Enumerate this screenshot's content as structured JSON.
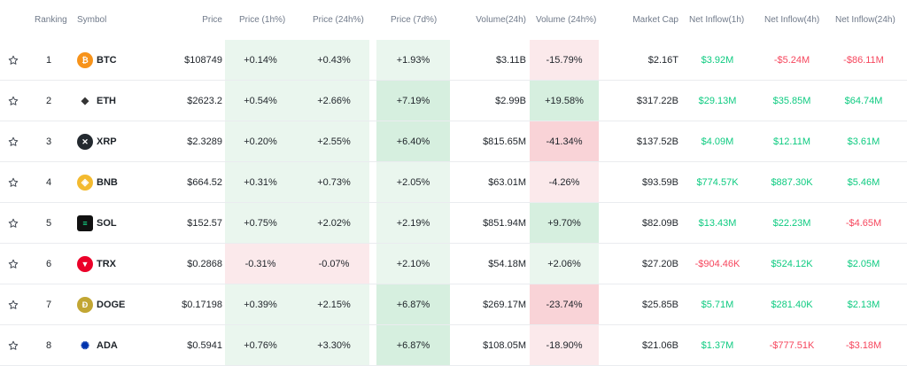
{
  "headers": {
    "ranking": "Ranking",
    "symbol": "Symbol",
    "price": "Price",
    "price_1h": "Price (1h%)",
    "price_24h": "Price (24h%)",
    "price_7d": "Price (7d%)",
    "volume_24h": "Volume(24h)",
    "volume_24h_pct": "Volume (24h%)",
    "market_cap": "Market Cap",
    "net_inflow_1h": "Net Inflow(1h)",
    "net_inflow_4h": "Net Inflow(4h)",
    "net_inflow_24h": "Net Inflow(24h)"
  },
  "colors": {
    "green_text": "#0ecb81",
    "red_text": "#f6465d",
    "green_bg_light": "#eaf6ee",
    "green_bg_strong": "#d6efdf",
    "red_bg_light": "#fbe9eb",
    "red_bg_strong": "#f9d3d7"
  },
  "rows": [
    {
      "rank": "1",
      "symbol": "BTC",
      "icon": "btc-coin-icon",
      "icon_color": "#f7931a",
      "glyph": "₿",
      "price": "$108749",
      "p1h": "+0.14%",
      "p24h": "+0.43%",
      "p7d": "+1.93%",
      "vol": "$3.11B",
      "volpct": "-15.79%",
      "mcap": "$2.16T",
      "in1h": "$3.92M",
      "in4h": "-$5.24M",
      "in24h": "-$86.11M"
    },
    {
      "rank": "2",
      "symbol": "ETH",
      "icon": "eth-coin-icon",
      "icon_color": "#ffffff",
      "glyph": "◆",
      "price": "$2623.2",
      "p1h": "+0.54%",
      "p24h": "+2.66%",
      "p7d": "+7.19%",
      "vol": "$2.99B",
      "volpct": "+19.58%",
      "mcap": "$317.22B",
      "in1h": "$29.13M",
      "in4h": "$35.85M",
      "in24h": "$64.74M"
    },
    {
      "rank": "3",
      "symbol": "XRP",
      "icon": "xrp-coin-icon",
      "icon_color": "#23292f",
      "glyph": "✕",
      "price": "$2.3289",
      "p1h": "+0.20%",
      "p24h": "+2.55%",
      "p7d": "+6.40%",
      "vol": "$815.65M",
      "volpct": "-41.34%",
      "mcap": "$137.52B",
      "in1h": "$4.09M",
      "in4h": "$12.11M",
      "in24h": "$3.61M"
    },
    {
      "rank": "4",
      "symbol": "BNB",
      "icon": "bnb-coin-icon",
      "icon_color": "#f3ba2f",
      "glyph": "◈",
      "price": "$664.52",
      "p1h": "+0.31%",
      "p24h": "+0.73%",
      "p7d": "+2.05%",
      "vol": "$63.01M",
      "volpct": "-4.26%",
      "mcap": "$93.59B",
      "in1h": "$774.57K",
      "in4h": "$887.30K",
      "in24h": "$5.46M"
    },
    {
      "rank": "5",
      "symbol": "SOL",
      "icon": "sol-coin-icon",
      "icon_color": "#111111",
      "glyph": "≡",
      "price": "$152.57",
      "p1h": "+0.75%",
      "p24h": "+2.02%",
      "p7d": "+2.19%",
      "vol": "$851.94M",
      "volpct": "+9.70%",
      "mcap": "$82.09B",
      "in1h": "$13.43M",
      "in4h": "$22.23M",
      "in24h": "-$4.65M"
    },
    {
      "rank": "6",
      "symbol": "TRX",
      "icon": "trx-coin-icon",
      "icon_color": "#eb0029",
      "glyph": "▼",
      "price": "$0.2868",
      "p1h": "-0.31%",
      "p24h": "-0.07%",
      "p7d": "+2.10%",
      "vol": "$54.18M",
      "volpct": "+2.06%",
      "mcap": "$27.20B",
      "in1h": "-$904.46K",
      "in4h": "$524.12K",
      "in24h": "$2.05M"
    },
    {
      "rank": "7",
      "symbol": "DOGE",
      "icon": "doge-coin-icon",
      "icon_color": "#c2a633",
      "glyph": "Ð",
      "price": "$0.17198",
      "p1h": "+0.39%",
      "p24h": "+2.15%",
      "p7d": "+6.87%",
      "vol": "$269.17M",
      "volpct": "-23.74%",
      "mcap": "$25.85B",
      "in1h": "$5.71M",
      "in4h": "$281.40K",
      "in24h": "$2.13M"
    },
    {
      "rank": "8",
      "symbol": "ADA",
      "icon": "ada-coin-icon",
      "icon_color": "#ffffff",
      "glyph": "✺",
      "price": "$0.5941",
      "p1h": "+0.76%",
      "p24h": "+3.30%",
      "p7d": "+6.87%",
      "vol": "$108.05M",
      "volpct": "-18.90%",
      "mcap": "$21.06B",
      "in1h": "$1.37M",
      "in4h": "-$777.51K",
      "in24h": "-$3.18M"
    }
  ]
}
